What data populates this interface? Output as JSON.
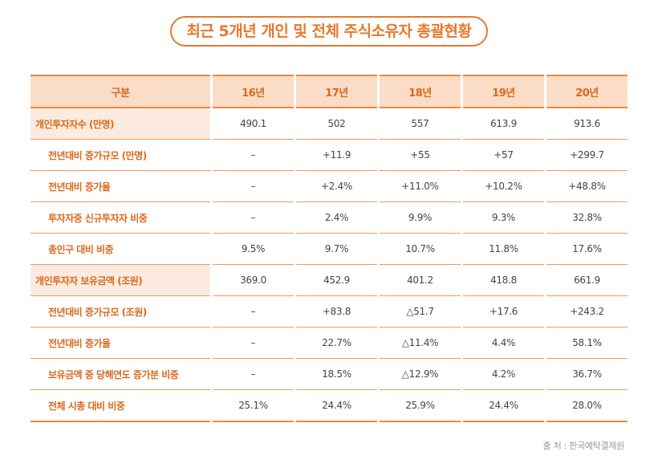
{
  "title": "최근 5개년 개인 및 전체 주식소유자 총괄현황",
  "table": {
    "headers": [
      "구분",
      "16년",
      "17년",
      "18년",
      "19년",
      "20년"
    ],
    "rows": [
      {
        "label": "개인투자자수 (만명)",
        "main": true,
        "values": [
          "490.1",
          "502",
          "557",
          "613.9",
          "913.6"
        ]
      },
      {
        "label": "전년대비 증가규모 (만명)",
        "main": false,
        "values": [
          "–",
          "+11.9",
          "+55",
          "+57",
          "+299.7"
        ]
      },
      {
        "label": "전년대비 증가율",
        "main": false,
        "values": [
          "–",
          "+2.4%",
          "+11.0%",
          "+10.2%",
          "+48.8%"
        ]
      },
      {
        "label": "투자자중 신규투자자 비중",
        "main": false,
        "values": [
          "–",
          "2.4%",
          "9.9%",
          "9.3%",
          "32.8%"
        ]
      },
      {
        "label": "총인구 대비 비중",
        "main": false,
        "values": [
          "9.5%",
          "9.7%",
          "10.7%",
          "11.8%",
          "17.6%"
        ]
      },
      {
        "label": "개인투자자 보유금액 (조원)",
        "main": true,
        "values": [
          "369.0",
          "452.9",
          "401.2",
          "418.8",
          "661.9"
        ]
      },
      {
        "label": "전년대비 증가규모 (조원)",
        "main": false,
        "values": [
          "–",
          "+83.8",
          "△51.7",
          "+17.6",
          "+243.2"
        ]
      },
      {
        "label": "전년대비 증가율",
        "main": false,
        "values": [
          "–",
          "22.7%",
          "△11.4%",
          "4.4%",
          "58.1%"
        ]
      },
      {
        "label": "보유금액 중 당해연도 증가분 비중",
        "main": false,
        "values": [
          "–",
          "18.5%",
          "△12.9%",
          "4.2%",
          "36.7%"
        ]
      },
      {
        "label": "전체 시총 대비 비중",
        "main": false,
        "values": [
          "25.1%",
          "24.4%",
          "25.9%",
          "24.4%",
          "28.0%"
        ]
      }
    ]
  },
  "source": "출 처 : 한국예탁결제원"
}
